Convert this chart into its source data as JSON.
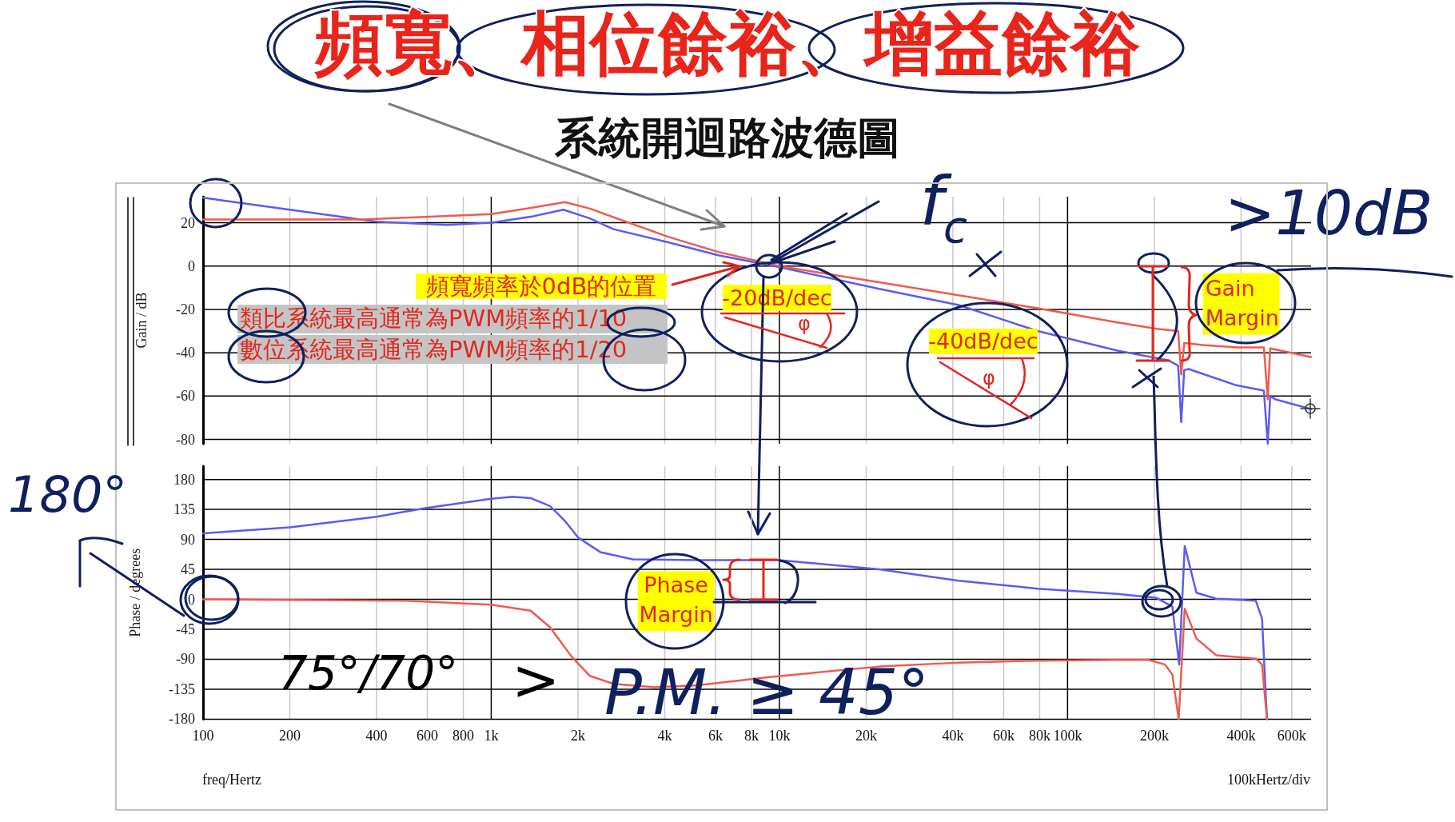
{
  "chart_data": [
    {
      "type": "line",
      "title": "頻寬、相位餘裕、增益餘裕",
      "subtitle": "系統開迴路波德圖",
      "ylabel": "Gain / dB",
      "log": "x",
      "xlim": [
        100,
        700000
      ],
      "xticks": [
        100,
        200,
        400,
        600,
        800,
        1000,
        2000,
        4000,
        6000,
        8000,
        10000,
        20000,
        40000,
        60000,
        80000,
        100000,
        200000,
        400000,
        600000
      ],
      "ylim": [
        -82,
        32
      ],
      "yticks": [
        -80,
        -60,
        -40,
        -20,
        0,
        20
      ],
      "grid": true,
      "tick_labels": "y",
      "marker": "none",
      "series": [
        {
          "color": "#5b5bf0",
          "x": [
            100,
            200,
            400,
            700,
            1000,
            1400,
            1780,
            2200,
            2660,
            4110,
            6140,
            10000,
            22200,
            41900,
            78800,
            149000,
            224000,
            242000,
            248000,
            254000,
            263000,
            385000,
            480000,
            495000,
            505000,
            527000,
            700000
          ],
          "values": [
            31.5,
            26,
            20.5,
            19,
            20,
            23,
            26,
            22,
            17,
            11,
            5,
            -0.5,
            -10.5,
            -18,
            -30,
            -39,
            -43.5,
            -46,
            -72,
            -48,
            -47.5,
            -55,
            -57.5,
            -82,
            -60,
            -61.5,
            -66
          ]
        },
        {
          "color": "#f05a4f",
          "x": [
            100,
            360,
            1000,
            1400,
            1800,
            2200,
            2660,
            4110,
            6140,
            10000,
            22200,
            41900,
            78800,
            149000,
            204000,
            242000,
            248000,
            254000,
            300000,
            385000,
            480000,
            495000,
            505000,
            700000
          ],
          "values": [
            21.5,
            21.5,
            24,
            27,
            29.5,
            26.5,
            22.5,
            13.5,
            6.5,
            0,
            -7.5,
            -13.5,
            -19.5,
            -26,
            -29,
            -30,
            -50,
            -35.5,
            -36.5,
            -37.5,
            -37.5,
            -61.5,
            -38,
            -42
          ]
        }
      ],
      "annotations": [
        "頻寬頻率於0dB的位置",
        "類比系統最高通常為PWM頻率的1/10",
        "數位系統最高通常為PWM頻率的1/20",
        "-20dB/dec",
        "φ",
        "-40dB/dec",
        "φ",
        {
          "text": "Gain Margin",
          "x": 224000,
          "y": -43.5
        },
        {
          "text": "f$_{c}$",
          "x": 9000,
          "y": 0
        },
        {
          "text": ">10dB",
          "x": 224000,
          "y": -43.5
        }
      ]
    },
    {
      "type": "line",
      "xlabel": "freq/Hertz",
      "ylabel": "Phase / degrees",
      "log": "x",
      "xlim": [
        100,
        700000
      ],
      "xticks": [
        100,
        200,
        400,
        600,
        800,
        {
          "value": 1000,
          "label": "1k"
        },
        {
          "value": 2000,
          "label": "2k"
        },
        {
          "value": 4000,
          "label": "4k"
        },
        {
          "value": 6000,
          "label": "6k"
        },
        {
          "value": 8000,
          "label": "8k"
        },
        {
          "value": 10000,
          "label": "10k"
        },
        {
          "value": 20000,
          "label": "20k"
        },
        {
          "value": 40000,
          "label": "40k"
        },
        {
          "value": 60000,
          "label": "60k"
        },
        {
          "value": 80000,
          "label": "80k"
        },
        {
          "value": 100000,
          "label": "100k"
        },
        {
          "value": 200000,
          "label": "200k"
        },
        {
          "value": 400000,
          "label": "400k"
        },
        {
          "value": 600000,
          "label": "600k"
        }
      ],
      "ylim": [
        -180,
        200
      ],
      "yticks": [
        -180,
        -135,
        -90,
        -45,
        0,
        45,
        90,
        135,
        180
      ],
      "grid": true,
      "marker": "none",
      "series": [
        {
          "color": "#5b5bf0",
          "x": [
            100,
            200,
            400,
            590,
            1000,
            1190,
            1370,
            1600,
            1800,
            2000,
            2390,
            3100,
            5200,
            10000,
            22200,
            41900,
            78800,
            149000,
            204000,
            231000,
            244000,
            255000,
            280000,
            328000,
            450000,
            473000,
            492000
          ],
          "values": [
            99,
            108,
            124,
            137,
            151,
            154,
            152,
            140,
            118,
            93,
            71,
            60,
            59,
            59,
            45,
            28,
            16,
            8,
            2,
            -11,
            -98,
            80,
            10,
            1,
            -2,
            -29,
            -180
          ]
        },
        {
          "color": "#f05a4f",
          "x": [
            100,
            500,
            1000,
            1370,
            1600,
            1900,
            2200,
            2660,
            3700,
            5200,
            9100,
            22200,
            41900,
            78800,
            149000,
            191000,
            218000,
            231000,
            243000,
            255000,
            280000,
            328000,
            450000,
            473000,
            492000
          ],
          "values": [
            0,
            -2,
            -8,
            -17,
            -42,
            -86,
            -115,
            -127,
            -132,
            -129,
            -117,
            -101,
            -95,
            -92,
            -91,
            -91,
            -98,
            -113,
            -180,
            -14,
            -59,
            -84,
            -89,
            -98,
            -180
          ]
        }
      ],
      "annotations": [
        {
          "text": "Phase Margin",
          "x": 7300,
          "y": 59
        },
        "180°",
        "75°/70°",
        ">",
        {
          "text": "P.M. ≥ 45°",
          "x": 10000,
          "y": 59
        },
        "100kHertz/div"
      ]
    }
  ]
}
